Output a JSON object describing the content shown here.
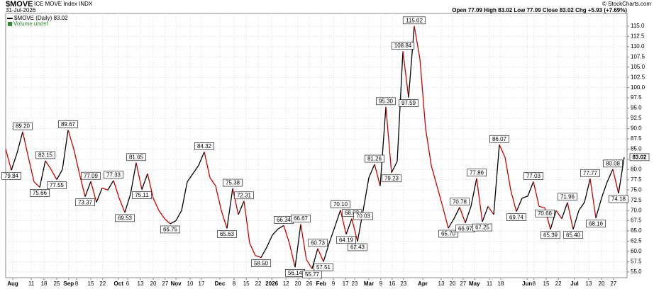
{
  "header": {
    "symbol": "$MOVE",
    "name": "ICE MOVE Index INDX",
    "date": "31-Jul-2026",
    "quote": "Open 77.09 High 83.02 Low 77.09 Close 83.02 Chg +5.93 (+7.69%)",
    "credit": "© StockCharts.com",
    "volume": "Volume undef"
  },
  "chart_data": {
    "type": "line",
    "series": [
      {
        "name": "$MOVE (Daily) 83.02",
        "colors": {
          "up": "#000000",
          "down": "#cc0000"
        },
        "values": [
          85,
          79.84,
          84,
          89.2,
          83,
          77,
          75.66,
          82.15,
          80,
          77.55,
          80,
          89.67,
          85,
          79,
          73.37,
          77.09,
          72,
          75.5,
          75,
          77.33,
          73,
          69.53,
          74,
          81.65,
          75.11,
          79,
          73,
          70,
          68,
          66.75,
          67.5,
          70,
          77,
          79,
          81,
          84.32,
          78,
          76,
          70,
          65.63,
          75.38,
          69,
          72.31,
          62,
          59,
          58.5,
          61,
          64,
          65.5,
          66.34,
          62,
          56.14,
          66.67,
          58,
          55.77,
          60.73,
          57.51,
          62,
          66,
          70.1,
          64.19,
          68.03,
          62.43,
          70.03,
          78,
          81.26,
          76,
          95.3,
          79.23,
          82,
          108.84,
          97.59,
          115.02,
          107,
          90,
          81,
          76,
          71,
          65.7,
          68,
          70.78,
          66.97,
          71,
          77.86,
          67.25,
          71,
          69,
          86.07,
          83,
          75,
          69.74,
          73,
          73.5,
          77.03,
          71,
          70.66,
          65.39,
          70,
          68,
          71.96,
          65.4,
          70,
          72,
          77.77,
          68.16,
          73,
          77,
          80.08,
          74.18,
          83.02
        ],
        "value_labels": [
          null,
          "79.84",
          null,
          "89.20",
          null,
          null,
          "75.66",
          "82.15",
          null,
          "77.55",
          null,
          "89.67",
          null,
          null,
          "73.37",
          "77.09",
          null,
          null,
          null,
          "77.33",
          null,
          "69.53",
          null,
          "81.65",
          "75.11",
          null,
          null,
          null,
          null,
          "66.75",
          null,
          null,
          null,
          null,
          null,
          "84.32",
          null,
          null,
          null,
          "65.63",
          "75.38",
          null,
          "72.31",
          null,
          null,
          "58.50",
          null,
          null,
          null,
          "66.34",
          null,
          "56.14",
          "66.67",
          null,
          "55.77",
          "60.73",
          "57.51",
          null,
          null,
          "70.10",
          "64.19",
          "68.03",
          "62.43",
          "70.03",
          null,
          "81.26",
          null,
          "95.30",
          "79.23",
          null,
          "108.84",
          "97.59",
          "115.02",
          null,
          null,
          null,
          null,
          null,
          "65.70",
          null,
          "70.78",
          "66.97",
          null,
          "77.86",
          "67.25",
          null,
          null,
          "86.07",
          null,
          null,
          "69.74",
          null,
          null,
          "77.03",
          null,
          "70.66",
          "65.39",
          null,
          null,
          "71.96",
          "65.40",
          null,
          null,
          "77.77",
          "68.16",
          null,
          null,
          "80.08",
          "74.18",
          "83.02"
        ]
      }
    ],
    "ylim": [
      53.6,
      118.1
    ],
    "yticks": [
      {
        "value": 55,
        "label": "55.0"
      },
      {
        "value": 57.5,
        "label": "57.5"
      },
      {
        "value": 60,
        "label": "60.0"
      },
      {
        "value": 62.5,
        "label": "62.5"
      },
      {
        "value": 65,
        "label": "65.0"
      },
      {
        "value": 67.5,
        "label": "67.5"
      },
      {
        "value": 70,
        "label": "70.0"
      },
      {
        "value": 72.5,
        "label": "72.5"
      },
      {
        "value": 75,
        "label": "75.0"
      },
      {
        "value": 77.5,
        "label": "77.5"
      },
      {
        "value": 80,
        "label": "80.0"
      },
      {
        "value": 82.5,
        "label": "82.5"
      },
      {
        "value": 85,
        "label": "85.0"
      },
      {
        "value": 87.5,
        "label": "87.5"
      },
      {
        "value": 90,
        "label": "90.0"
      },
      {
        "value": 92.5,
        "label": "92.5"
      },
      {
        "value": 95,
        "label": "95.0"
      },
      {
        "value": 97.5,
        "label": "97.5"
      },
      {
        "value": 100,
        "label": "100.0"
      },
      {
        "value": 102.5,
        "label": "102.5"
      },
      {
        "value": 105,
        "label": "105.0"
      },
      {
        "value": 107.5,
        "label": "107.5"
      },
      {
        "value": 110,
        "label": "110.0"
      },
      {
        "value": 112.5,
        "label": "112.5"
      },
      {
        "value": 115,
        "label": "115.0"
      }
    ],
    "xticks": [
      {
        "value": 1.25,
        "label": "Aug"
      },
      {
        "value": 4.5,
        "label": "11"
      },
      {
        "value": 6.75,
        "label": "18"
      },
      {
        "value": 9,
        "label": "25"
      },
      {
        "value": 11.1,
        "label": "Sep"
      },
      {
        "value": 12.5,
        "label": "8"
      },
      {
        "value": 15,
        "label": "15"
      },
      {
        "value": 17.1,
        "label": "22"
      },
      {
        "value": 19.9,
        "label": "Oct"
      },
      {
        "value": 21.5,
        "label": "6"
      },
      {
        "value": 23.75,
        "label": "13"
      },
      {
        "value": 26,
        "label": "20"
      },
      {
        "value": 28.1,
        "label": "27"
      },
      {
        "value": 30,
        "label": "Nov"
      },
      {
        "value": 32.5,
        "label": "10"
      },
      {
        "value": 34.5,
        "label": "17"
      },
      {
        "value": 37.75,
        "label": "Dec"
      },
      {
        "value": 40.25,
        "label": "8"
      },
      {
        "value": 42.4,
        "label": "15"
      },
      {
        "value": 44.5,
        "label": "22"
      },
      {
        "value": 46.9,
        "label": "2026"
      },
      {
        "value": 49.4,
        "label": "12"
      },
      {
        "value": 51.5,
        "label": "20"
      },
      {
        "value": 53.5,
        "label": "26"
      },
      {
        "value": 55.6,
        "label": "Feb"
      },
      {
        "value": 57.75,
        "label": "9"
      },
      {
        "value": 59.9,
        "label": "17"
      },
      {
        "value": 61.5,
        "label": "23"
      },
      {
        "value": 64,
        "label": "Mar"
      },
      {
        "value": 66.1,
        "label": "9"
      },
      {
        "value": 68.1,
        "label": "16"
      },
      {
        "value": 70.1,
        "label": "23"
      },
      {
        "value": 73.5,
        "label": "Apr"
      },
      {
        "value": 76.75,
        "label": "13"
      },
      {
        "value": 78.75,
        "label": "20"
      },
      {
        "value": 80.6,
        "label": "27"
      },
      {
        "value": 82.6,
        "label": "May"
      },
      {
        "value": 85.25,
        "label": "11"
      },
      {
        "value": 87.25,
        "label": "18"
      },
      {
        "value": 91.9,
        "label": "Jun"
      },
      {
        "value": 93.1,
        "label": "8"
      },
      {
        "value": 95.25,
        "label": "15"
      },
      {
        "value": 97.4,
        "label": "22"
      },
      {
        "value": 100.25,
        "label": "Jul"
      },
      {
        "value": 102.75,
        "label": "13"
      },
      {
        "value": 105,
        "label": "20"
      },
      {
        "value": 107.1,
        "label": "27"
      }
    ],
    "grid": true
  }
}
